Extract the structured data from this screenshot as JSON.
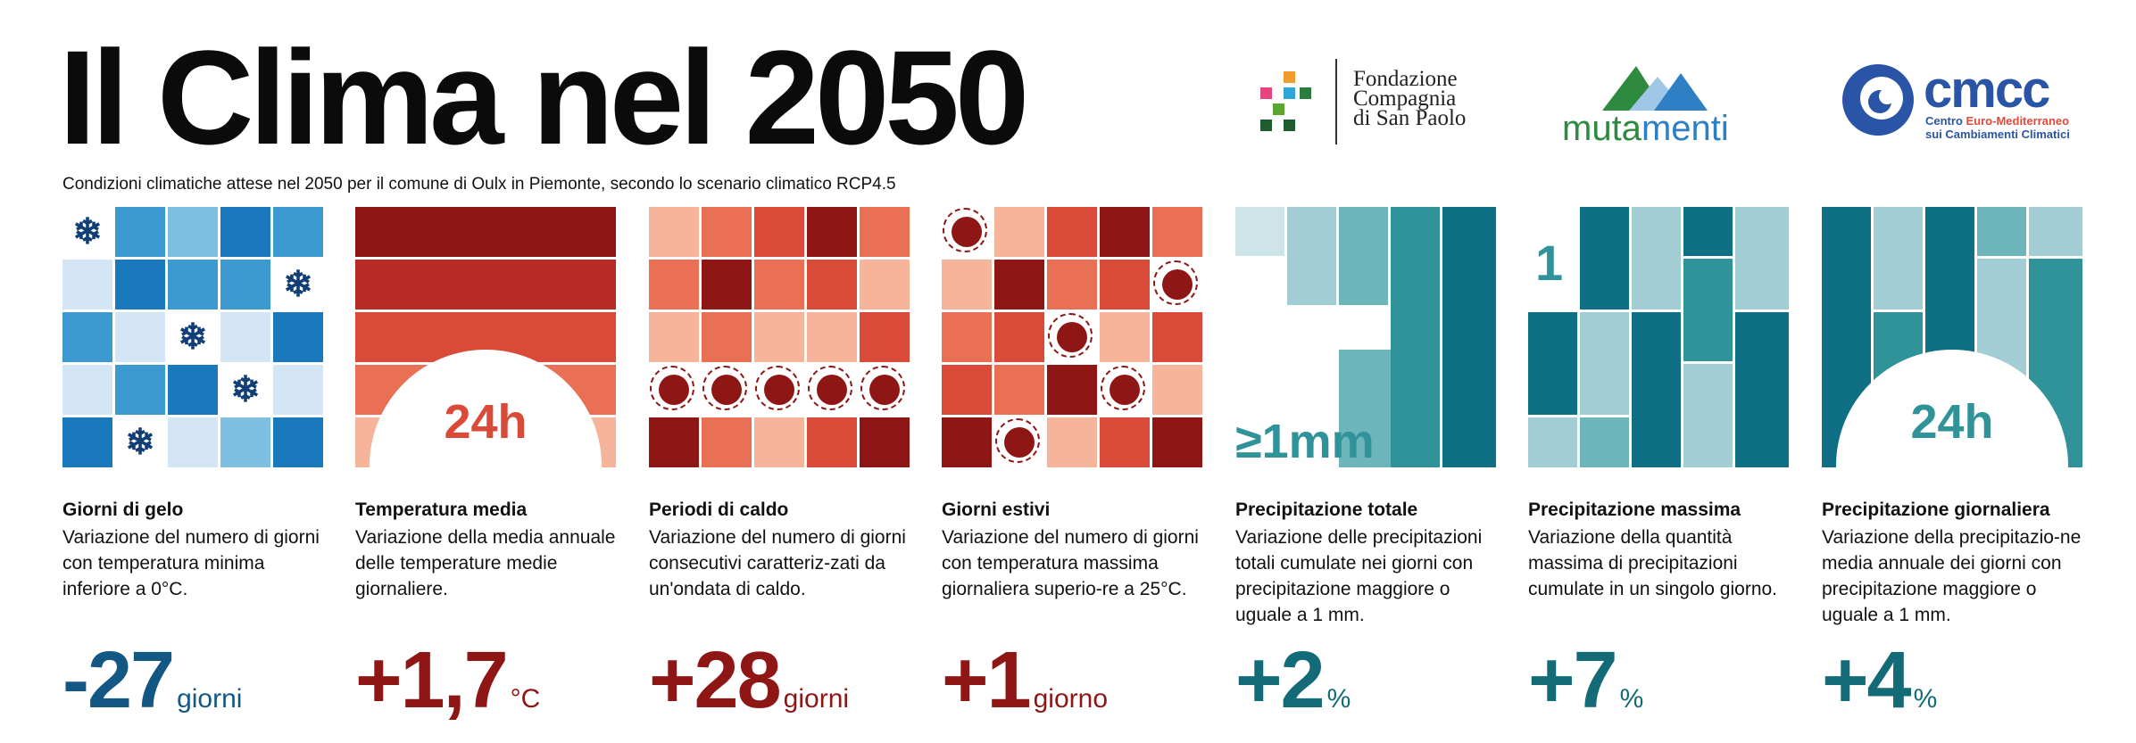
{
  "header": {
    "title": "Il Clima nel 2050",
    "subtitle": "Condizioni climatiche attese nel 2050 per il comune di Oulx in Piemonte,  secondo lo scenario climatico RCP4.5"
  },
  "logos": {
    "fondazione": [
      "Fondazione",
      "Compagnia",
      "di San Paolo"
    ],
    "mutamenti": [
      "muta",
      "menti"
    ],
    "cmcc": {
      "name": "cmcc",
      "line1_a": "Centro ",
      "line1_b": "Euro-Mediterraneo",
      "line2": "sui Cambiamenti Climatici"
    }
  },
  "colors": {
    "blue": "#135784",
    "red": "#8e1716",
    "teal": "#136b78"
  },
  "cards": [
    {
      "name": "Giorni di gelo",
      "desc": "Variazione del numero di giorni con temperatura minima inferiore a 0°C.",
      "value": "-27",
      "unit": "giorni"
    },
    {
      "name": "Temperatura media",
      "desc": "Variazione della media annuale delle temperature medie giornaliere.",
      "value": "+1,7",
      "unit": "°C",
      "badge": "24h"
    },
    {
      "name": "Periodi di caldo",
      "desc": "Variazione del numero di giorni consecutivi caratteriz-zati da un'ondata di caldo.",
      "value": "+28",
      "unit": "giorni"
    },
    {
      "name": "Giorni estivi",
      "desc": "Variazione del numero di giorni con temperatura massima giornaliera superio-re a 25°C.",
      "value": "+1",
      "unit": "giorno"
    },
    {
      "name": "Precipitazione totale",
      "desc": "Variazione delle precipitazioni totali cumulate nei giorni con precipitazione maggiore o uguale a 1 mm.",
      "value": "+2",
      "unit": "%",
      "badge": "≥1mm"
    },
    {
      "name": "Precipitazione massima",
      "desc": "Variazione della quantità massima di precipitazioni cumulate in un singolo giorno.",
      "value": "+7",
      "unit": "%",
      "badge": "1"
    },
    {
      "name": "Precipitazione giornaliera",
      "desc": "Variazione della precipitazio-ne media annuale dei giorni con precipitazione maggiore o uguale a 1 mm.",
      "value": "+4",
      "unit": "%",
      "badge": "24h"
    }
  ]
}
